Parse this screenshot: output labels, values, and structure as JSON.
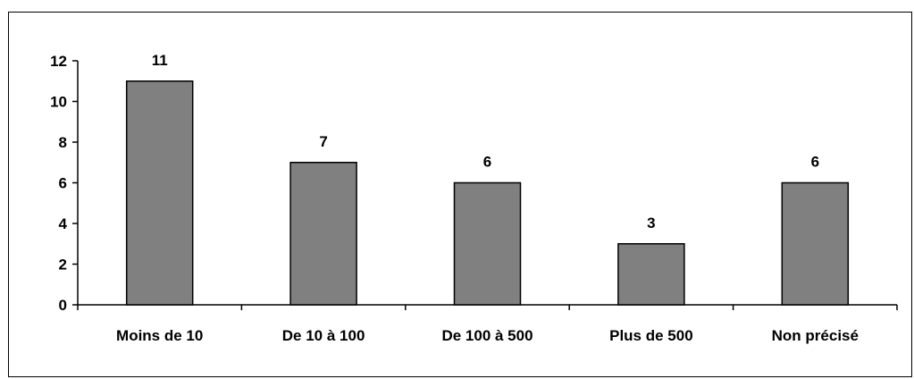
{
  "chart_data": {
    "type": "bar",
    "title": "",
    "xlabel": "",
    "ylabel": "",
    "categories": [
      "Moins de 10",
      "De 10 à 100",
      "De 100 à 500",
      "Plus de 500",
      "Non précisé"
    ],
    "values": [
      11,
      7,
      6,
      3,
      6
    ],
    "data_labels": [
      "11",
      "7",
      "6",
      "3",
      "6"
    ],
    "yticks": [
      0,
      2,
      4,
      6,
      8,
      10,
      12
    ],
    "ylim": [
      0,
      12
    ],
    "grid": false,
    "legend": "none",
    "bar_color": "#808080",
    "bar_edge_color": "#000000"
  }
}
